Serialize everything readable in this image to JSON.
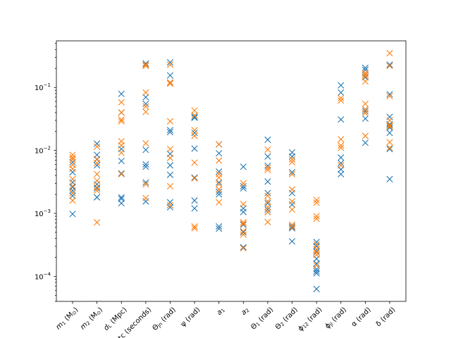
{
  "chart_data": {
    "type": "scatter",
    "title": "",
    "xlabel": "",
    "ylabel": "",
    "yscale": "log",
    "ylim": [
      4e-05,
      0.55
    ],
    "grid": false,
    "marker": "x",
    "yticks": [
      {
        "value": 0.0001,
        "mantissa": "10",
        "exponent": "−4"
      },
      {
        "value": 0.001,
        "mantissa": "10",
        "exponent": "−3"
      },
      {
        "value": 0.01,
        "mantissa": "10",
        "exponent": "−2"
      },
      {
        "value": 0.1,
        "mantissa": "10",
        "exponent": "−1"
      }
    ],
    "categories": [
      {
        "main": "m",
        "sub": "1",
        "tail": " (M",
        "sunsub": "⊙",
        "close": ")"
      },
      {
        "main": "m",
        "sub": "2",
        "tail": " (M",
        "sunsub": "⊙",
        "close": ")"
      },
      {
        "main": "d",
        "sub": "L",
        "tail": " (Mpc)",
        "sunsub": "",
        "close": ""
      },
      {
        "main": "",
        "sub": "",
        "tail": "t",
        "sunsub": "",
        "close": "c (seconds)"
      },
      {
        "main": "Θ",
        "sub": "jn",
        "tail": " (rad)",
        "sunsub": "",
        "close": ""
      },
      {
        "main": "ψ",
        "sub": "",
        "tail": " (rad)",
        "sunsub": "",
        "close": ""
      },
      {
        "main": "a",
        "sub": "1",
        "tail": "",
        "sunsub": "",
        "close": ""
      },
      {
        "main": "a",
        "sub": "2",
        "tail": "",
        "sunsub": "",
        "close": ""
      },
      {
        "main": "Θ",
        "sub": "1",
        "tail": " (rad)",
        "sunsub": "",
        "close": ""
      },
      {
        "main": "Θ",
        "sub": "2",
        "tail": " (rad)",
        "sunsub": "",
        "close": ""
      },
      {
        "main": "ϕ",
        "sub": "12",
        "tail": " (rad)",
        "sunsub": "",
        "close": ""
      },
      {
        "main": "ϕ",
        "sub": "jl",
        "tail": " (rad)",
        "sunsub": "",
        "close": ""
      },
      {
        "main": "α",
        "sub": "",
        "tail": " (rad)",
        "sunsub": "",
        "close": ""
      },
      {
        "main": "δ",
        "sub": "",
        "tail": " (rad)",
        "sunsub": "",
        "close": ""
      }
    ],
    "series": [
      {
        "color": "#1f77b4",
        "values": [
          [
            0.0065,
            0.0045,
            0.0031,
            0.0026,
            0.0023,
            0.0021,
            0.0019,
            0.00098
          ],
          [
            0.0128,
            0.0085,
            0.0072,
            0.0058,
            0.0029,
            0.0025,
            0.0018,
            0.0018
          ],
          [
            0.079,
            0.04,
            0.0105,
            0.0068,
            0.0043,
            0.0018,
            0.0017,
            0.00145
          ],
          [
            0.24,
            0.07,
            0.055,
            0.0102,
            0.006,
            0.0055,
            0.0031,
            0.00155
          ],
          [
            0.25,
            0.155,
            0.12,
            0.021,
            0.0195,
            0.0088,
            0.0058,
            0.0041,
            0.0015,
            0.00125
          ],
          [
            0.034,
            0.033,
            0.019,
            0.0107,
            0.0037,
            0.0016,
            0.0012
          ],
          [
            0.0125,
            0.009,
            0.0046,
            0.0031,
            0.0022,
            0.002,
            0.00062,
            0.00057
          ],
          [
            0.0055,
            0.0027,
            0.0025,
            0.0012,
            0.00105,
            0.00066,
            0.0005,
            0.00029
          ],
          [
            0.0148,
            0.008,
            0.0057,
            0.0032,
            0.0021,
            0.00145,
            0.00115,
            0.00105
          ],
          [
            0.0093,
            0.008,
            0.0045,
            0.0021,
            0.00138,
            0.00062,
            0.00058,
            0.00036
          ],
          [
            0.00035,
            0.0003,
            0.00025,
            0.00019,
            0.00016,
            0.00013,
            0.00012,
            0.000112,
            6.3e-05
          ],
          [
            0.108,
            0.083,
            0.031,
            0.0077,
            0.0063,
            0.005,
            0.0042
          ],
          [
            0.205,
            0.19,
            0.16,
            0.145,
            0.045,
            0.042,
            0.032,
            0.0132
          ],
          [
            0.23,
            0.078,
            0.034,
            0.026,
            0.023,
            0.019,
            0.0105,
            0.0035
          ]
        ]
      },
      {
        "color": "#ff7f0e",
        "values": [
          [
            0.0085,
            0.0077,
            0.0072,
            0.0059,
            0.0051,
            0.0035,
            0.0027,
            0.0021,
            0.0016
          ],
          [
            0.0115,
            0.0073,
            0.0063,
            0.0042,
            0.0033,
            0.0026,
            0.0023,
            0.00072
          ],
          [
            0.058,
            0.04,
            0.031,
            0.029,
            0.014,
            0.012,
            0.0092,
            0.0042
          ],
          [
            0.23,
            0.22,
            0.083,
            0.05,
            0.041,
            0.013,
            0.0029,
            0.00175
          ],
          [
            0.23,
            0.12,
            0.115,
            0.029,
            0.0105,
            0.0076,
            0.0027,
            0.00135
          ],
          [
            0.043,
            0.036,
            0.021,
            0.017,
            0.0064,
            0.0036,
            0.00062,
            0.00058
          ],
          [
            0.0125,
            0.0069,
            0.0042,
            0.0037,
            0.0029,
            0.0024,
            0.0015
          ],
          [
            0.003,
            0.0014,
            0.00072,
            0.00068,
            0.00052,
            0.00046,
            0.00028
          ],
          [
            0.0103,
            0.0053,
            0.0049,
            0.0019,
            0.00155,
            0.00125,
            0.00105,
            0.00073
          ],
          [
            0.0072,
            0.0065,
            0.0042,
            0.0024,
            0.00155,
            0.00115,
            0.00066,
            0.0006
          ],
          [
            0.00163,
            0.00148,
            0.0009,
            0.00082,
            0.00032,
            0.00027,
            0.00024,
            0.00022,
            0.00015
          ],
          [
            0.068,
            0.062,
            0.015,
            0.012,
            0.011,
            0.0058
          ],
          [
            0.17,
            0.16,
            0.15,
            0.125,
            0.055,
            0.045,
            0.039,
            0.017
          ],
          [
            0.35,
            0.22,
            0.073,
            0.03,
            0.025,
            0.024,
            0.0135,
            0.011
          ]
        ]
      }
    ]
  }
}
